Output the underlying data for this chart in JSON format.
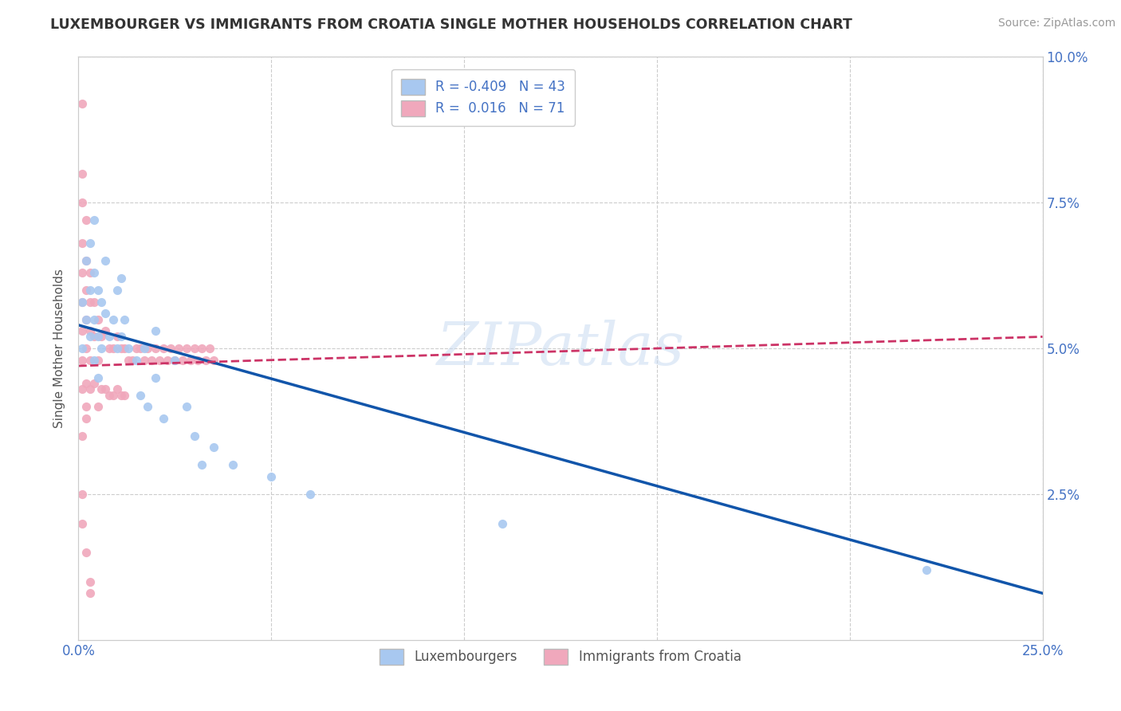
{
  "title": "LUXEMBOURGER VS IMMIGRANTS FROM CROATIA SINGLE MOTHER HOUSEHOLDS CORRELATION CHART",
  "source": "Source: ZipAtlas.com",
  "ylabel": "Single Mother Households",
  "xlim": [
    0.0,
    0.25
  ],
  "ylim": [
    0.0,
    0.1
  ],
  "ytick_labels_right": [
    "",
    "2.5%",
    "5.0%",
    "7.5%",
    "10.0%"
  ],
  "xtick_labels": [
    "0.0%",
    "",
    "",
    "",
    "",
    "25.0%"
  ],
  "legend_blue_label": "Luxembourgers",
  "legend_pink_label": "Immigrants from Croatia",
  "r_blue": -0.409,
  "n_blue": 43,
  "r_pink": 0.016,
  "n_pink": 71,
  "blue_color": "#a8c8f0",
  "pink_color": "#f0a8bc",
  "trendline_blue_color": "#1155aa",
  "trendline_pink_color": "#cc3366",
  "background_color": "#ffffff",
  "grid_color": "#cccccc",
  "watermark": "ZIPatlas",
  "blue_x": [
    0.001,
    0.001,
    0.002,
    0.002,
    0.003,
    0.003,
    0.003,
    0.004,
    0.004,
    0.004,
    0.004,
    0.005,
    0.005,
    0.005,
    0.006,
    0.006,
    0.007,
    0.007,
    0.008,
    0.009,
    0.01,
    0.01,
    0.011,
    0.011,
    0.012,
    0.013,
    0.015,
    0.016,
    0.017,
    0.018,
    0.02,
    0.02,
    0.022,
    0.025,
    0.028,
    0.03,
    0.032,
    0.035,
    0.04,
    0.05,
    0.06,
    0.11,
    0.22
  ],
  "blue_y": [
    0.058,
    0.05,
    0.065,
    0.055,
    0.068,
    0.06,
    0.052,
    0.072,
    0.063,
    0.055,
    0.048,
    0.06,
    0.052,
    0.045,
    0.058,
    0.05,
    0.065,
    0.056,
    0.052,
    0.055,
    0.06,
    0.05,
    0.062,
    0.052,
    0.055,
    0.05,
    0.048,
    0.042,
    0.05,
    0.04,
    0.053,
    0.045,
    0.038,
    0.048,
    0.04,
    0.035,
    0.03,
    0.033,
    0.03,
    0.028,
    0.025,
    0.02,
    0.012
  ],
  "pink_x": [
    0.001,
    0.001,
    0.001,
    0.001,
    0.001,
    0.001,
    0.001,
    0.001,
    0.001,
    0.002,
    0.002,
    0.002,
    0.002,
    0.002,
    0.002,
    0.002,
    0.003,
    0.003,
    0.003,
    0.003,
    0.003,
    0.004,
    0.004,
    0.004,
    0.005,
    0.005,
    0.005,
    0.006,
    0.006,
    0.007,
    0.007,
    0.008,
    0.008,
    0.009,
    0.009,
    0.01,
    0.01,
    0.011,
    0.011,
    0.012,
    0.012,
    0.013,
    0.014,
    0.015,
    0.016,
    0.017,
    0.018,
    0.019,
    0.02,
    0.021,
    0.022,
    0.023,
    0.024,
    0.025,
    0.026,
    0.027,
    0.028,
    0.029,
    0.03,
    0.031,
    0.032,
    0.033,
    0.034,
    0.035,
    0.002,
    0.001,
    0.001,
    0.001,
    0.002,
    0.003,
    0.003
  ],
  "pink_y": [
    0.092,
    0.08,
    0.075,
    0.068,
    0.063,
    0.058,
    0.053,
    0.048,
    0.043,
    0.072,
    0.065,
    0.06,
    0.055,
    0.05,
    0.044,
    0.038,
    0.063,
    0.058,
    0.053,
    0.048,
    0.043,
    0.058,
    0.052,
    0.044,
    0.055,
    0.048,
    0.04,
    0.052,
    0.043,
    0.053,
    0.043,
    0.05,
    0.042,
    0.05,
    0.042,
    0.052,
    0.043,
    0.05,
    0.042,
    0.05,
    0.042,
    0.048,
    0.048,
    0.05,
    0.05,
    0.048,
    0.05,
    0.048,
    0.05,
    0.048,
    0.05,
    0.048,
    0.05,
    0.048,
    0.05,
    0.048,
    0.05,
    0.048,
    0.05,
    0.048,
    0.05,
    0.048,
    0.05,
    0.048,
    0.04,
    0.035,
    0.025,
    0.02,
    0.015,
    0.01,
    0.008
  ],
  "blue_trend_x": [
    0.0,
    0.25
  ],
  "blue_trend_y": [
    0.054,
    0.008
  ],
  "pink_trend_x": [
    0.0,
    0.25
  ],
  "pink_trend_y": [
    0.047,
    0.052
  ]
}
